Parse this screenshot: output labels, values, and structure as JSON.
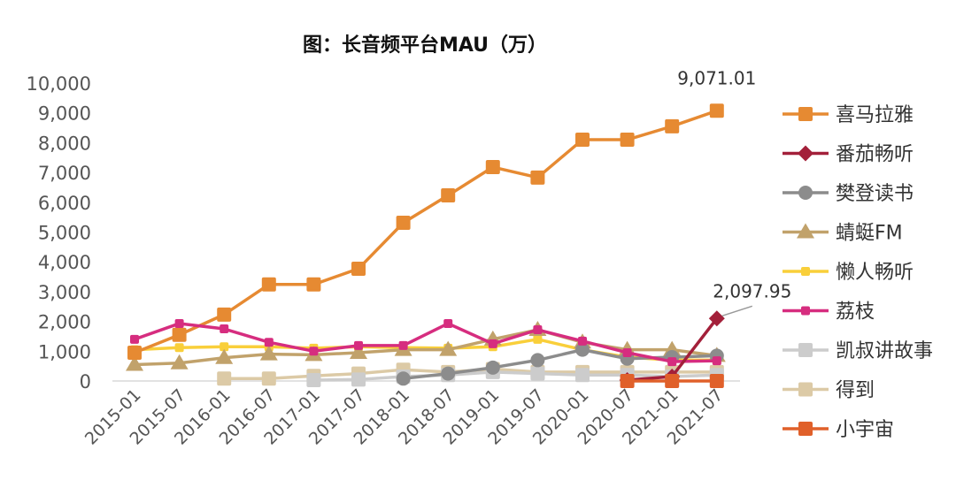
{
  "chart_data": {
    "type": "line",
    "title": "图：长音频平台MAU（万）",
    "xlabel": "",
    "ylabel": "",
    "ylim": [
      0,
      10000
    ],
    "yticks": [
      0,
      1000,
      2000,
      3000,
      4000,
      5000,
      6000,
      7000,
      8000,
      9000,
      10000
    ],
    "ytick_labels": [
      "0",
      "1,000",
      "2,000",
      "3,000",
      "4,000",
      "5,000",
      "6,000",
      "7,000",
      "8,000",
      "9,000",
      "10,000"
    ],
    "categories": [
      "2015-01",
      "2015-07",
      "2016-01",
      "2016-07",
      "2017-01",
      "2017-07",
      "2018-01",
      "2018-07",
      "2019-01",
      "2019-07",
      "2020-01",
      "2020-07",
      "2021-01",
      "2021-07"
    ],
    "legend_position": "right",
    "grid": false,
    "annotations": [
      {
        "text": "9,071.01",
        "series": "喜马拉雅",
        "category": "2021-07"
      },
      {
        "text": "2,097.95",
        "series": "番茄畅听",
        "category": "2021-07"
      }
    ],
    "series": [
      {
        "name": "懒人畅听",
        "color": "#f9cf3a",
        "marker": "square-small",
        "values": [
          1050,
          1120,
          1150,
          1150,
          1100,
          1150,
          1120,
          1100,
          1150,
          1400,
          1050,
          800,
          700,
          700
        ]
      },
      {
        "name": "蜻蜓FM",
        "color": "#c1a26b",
        "marker": "triangle",
        "values": [
          550,
          600,
          780,
          900,
          880,
          950,
          1050,
          1050,
          1400,
          1720,
          1300,
          1050,
          1050,
          850
        ]
      },
      {
        "name": "得到",
        "color": "#dccaa6",
        "marker": "square",
        "values": [
          null,
          null,
          80,
          80,
          170,
          250,
          380,
          300,
          400,
          300,
          300,
          300,
          300,
          300
        ]
      },
      {
        "name": "凯叔讲故事",
        "color": "#cccccc",
        "marker": "square",
        "values": [
          null,
          null,
          null,
          null,
          30,
          50,
          150,
          200,
          300,
          250,
          200,
          200,
          150,
          200
        ]
      },
      {
        "name": "樊登读书",
        "color": "#8c8c8c",
        "marker": "circle",
        "values": [
          null,
          null,
          null,
          null,
          null,
          null,
          80,
          250,
          450,
          700,
          1050,
          750,
          800,
          850
        ]
      },
      {
        "name": "喜马拉雅",
        "color": "#e68a32",
        "marker": "square",
        "values": [
          950,
          1550,
          2230,
          3240,
          3240,
          3770,
          5310,
          6230,
          7180,
          6830,
          8100,
          8100,
          8550,
          9071.01
        ]
      },
      {
        "name": "荔枝",
        "color": "#d62d7f",
        "marker": "square-small",
        "values": [
          1400,
          1930,
          1750,
          1300,
          1000,
          1190,
          1190,
          1930,
          1250,
          1720,
          1340,
          950,
          650,
          680
        ]
      },
      {
        "name": "番茄畅听",
        "color": "#a3203a",
        "marker": "diamond",
        "values": [
          null,
          null,
          null,
          null,
          null,
          null,
          null,
          null,
          null,
          null,
          null,
          30,
          150,
          2097.95
        ]
      },
      {
        "name": "小宇宙",
        "color": "#e0602a",
        "marker": "square",
        "values": [
          null,
          null,
          null,
          null,
          null,
          null,
          null,
          null,
          null,
          null,
          null,
          0,
          0,
          0
        ]
      }
    ],
    "legend_order": [
      "喜马拉雅",
      "番茄畅听",
      "樊登读书",
      "蜻蜓FM",
      "懒人畅听",
      "荔枝",
      "凯叔讲故事",
      "得到",
      "小宇宙"
    ]
  }
}
